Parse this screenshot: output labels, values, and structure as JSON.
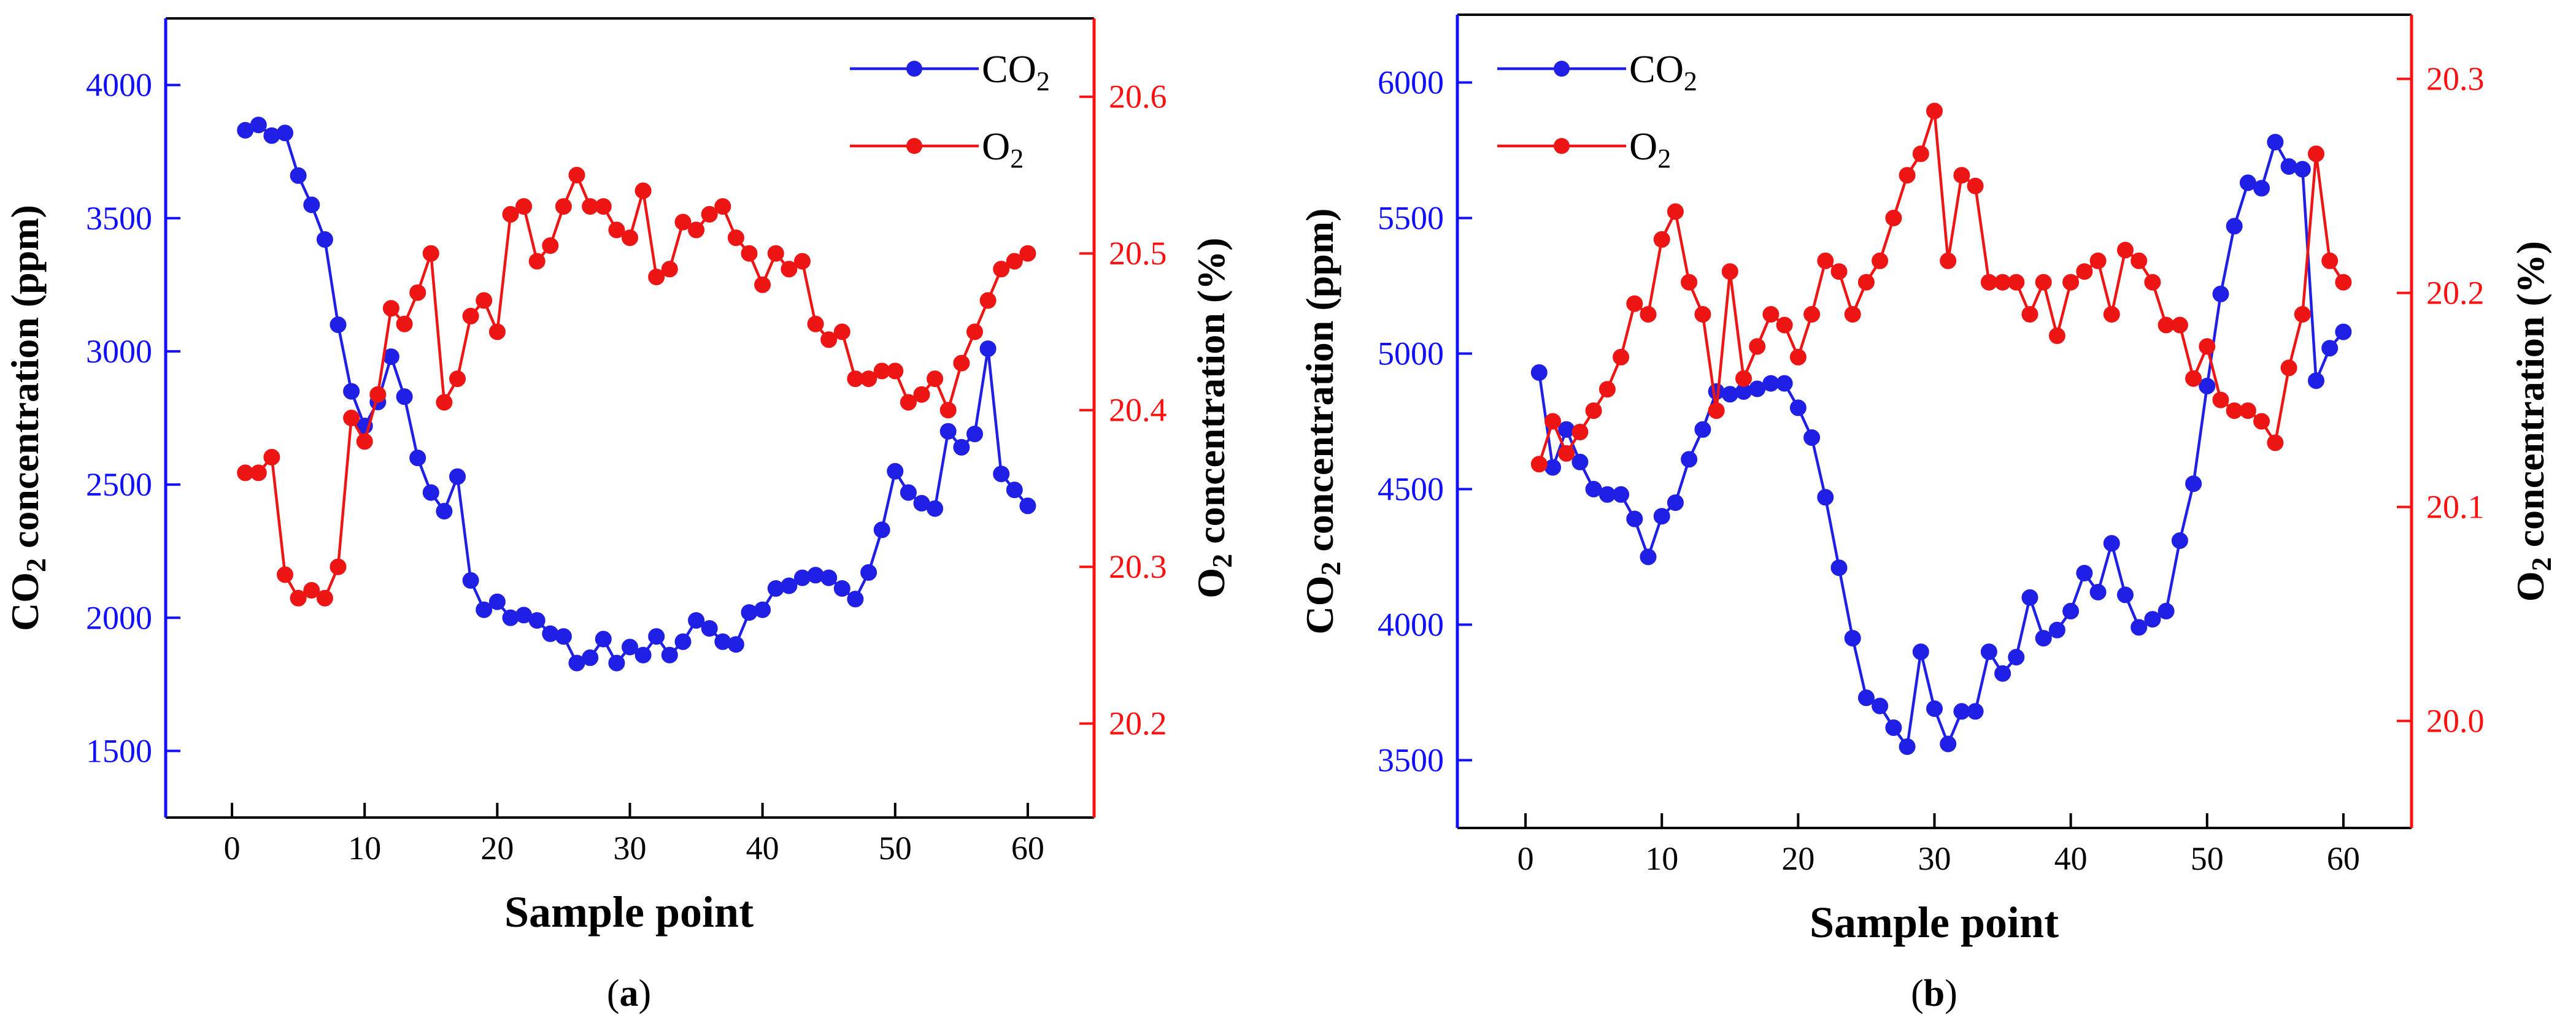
{
  "chart_data": [
    {
      "panel": "a",
      "panel_label": [
        "(",
        "a",
        ")"
      ],
      "type": "line",
      "xlabel": "Sample point",
      "ylabel_left": {
        "main": "CO",
        "sub": "2",
        "rest": " concentration (ppm)"
      },
      "ylabel_right": {
        "main": "O",
        "sub": "2",
        "rest": " concentration (%)"
      },
      "xlim": [
        -5,
        65
      ],
      "ylim_left": [
        1250,
        4250
      ],
      "ylim_right": [
        20.14,
        20.65
      ],
      "xticks": [
        0,
        10,
        20,
        30,
        40,
        50,
        60
      ],
      "yticks_left": [
        1500,
        2000,
        2500,
        3000,
        3500,
        4000
      ],
      "yticks_right": [
        20.2,
        20.3,
        20.4,
        20.5,
        20.6
      ],
      "legend_position": "top-right",
      "colors": {
        "left_axis": "#1010ff",
        "right_axis": "#ff1010",
        "frame": "#000000"
      },
      "series": [
        {
          "name": {
            "main": "CO",
            "sub": "2"
          },
          "axis": "left",
          "color": "#1f1fe6",
          "x": [
            1,
            2,
            3,
            4,
            5,
            6,
            7,
            8,
            9,
            10,
            11,
            12,
            13,
            14,
            15,
            16,
            17,
            18,
            19,
            20,
            21,
            22,
            23,
            24,
            25,
            26,
            27,
            28,
            29,
            30,
            31,
            32,
            33,
            34,
            35,
            36,
            37,
            38,
            39,
            40,
            41,
            42,
            43,
            44,
            45,
            46,
            47,
            48,
            49,
            50,
            51,
            52,
            53,
            54,
            55,
            56,
            57,
            58,
            59,
            60
          ],
          "values": [
            3830,
            3850,
            3810,
            3820,
            3660,
            3550,
            3420,
            3100,
            2850,
            2720,
            2810,
            2980,
            2830,
            2600,
            2470,
            2400,
            2530,
            2140,
            2030,
            2060,
            2000,
            2010,
            1990,
            1940,
            1930,
            1830,
            1850,
            1920,
            1830,
            1890,
            1860,
            1930,
            1860,
            1910,
            1990,
            1960,
            1910,
            1900,
            2020,
            2030,
            2110,
            2120,
            2150,
            2160,
            2150,
            2110,
            2070,
            2170,
            2330,
            2550,
            2470,
            2430,
            2410,
            2700,
            2640,
            2690,
            3010,
            2540,
            2480,
            2420
          ]
        },
        {
          "name": {
            "main": "O",
            "sub": "2"
          },
          "axis": "right",
          "color": "#ee1515",
          "x": [
            1,
            2,
            3,
            4,
            5,
            6,
            7,
            8,
            9,
            10,
            11,
            12,
            13,
            14,
            15,
            16,
            17,
            18,
            19,
            20,
            21,
            22,
            23,
            24,
            25,
            26,
            27,
            28,
            29,
            30,
            31,
            32,
            33,
            34,
            35,
            36,
            37,
            38,
            39,
            40,
            41,
            42,
            43,
            44,
            45,
            46,
            47,
            48,
            49,
            50,
            51,
            52,
            53,
            54,
            55,
            56,
            57,
            58,
            59,
            60
          ],
          "values": [
            20.36,
            20.36,
            20.37,
            20.295,
            20.28,
            20.285,
            20.28,
            20.3,
            20.395,
            20.38,
            20.41,
            20.465,
            20.455,
            20.475,
            20.5,
            20.405,
            20.42,
            20.46,
            20.47,
            20.45,
            20.525,
            20.53,
            20.495,
            20.505,
            20.53,
            20.55,
            20.53,
            20.53,
            20.515,
            20.51,
            20.54,
            20.485,
            20.49,
            20.52,
            20.515,
            20.525,
            20.53,
            20.51,
            20.5,
            20.48,
            20.5,
            20.49,
            20.495,
            20.455,
            20.445,
            20.45,
            20.42,
            20.42,
            20.425,
            20.425,
            20.405,
            20.41,
            20.42,
            20.4,
            20.43,
            20.45,
            20.47,
            20.49,
            20.495,
            20.5
          ]
        }
      ]
    },
    {
      "panel": "b",
      "panel_label": [
        "(",
        "b",
        ")"
      ],
      "type": "line",
      "xlabel": "Sample point",
      "ylabel_left": {
        "main": "CO",
        "sub": "2",
        "rest": " concentration (ppm)"
      },
      "ylabel_right": {
        "main": "O",
        "sub": "2",
        "rest": " concentration (%)"
      },
      "xlim": [
        -5,
        65
      ],
      "ylim_left": [
        3250,
        6250
      ],
      "ylim_right": [
        19.95,
        20.33
      ],
      "xticks": [
        0,
        10,
        20,
        30,
        40,
        50,
        60
      ],
      "yticks_left": [
        3500,
        4000,
        4500,
        5000,
        5500,
        6000
      ],
      "yticks_right": [
        20.0,
        20.1,
        20.2,
        20.3
      ],
      "legend_position": "top-left",
      "colors": {
        "left_axis": "#1010ff",
        "right_axis": "#ff1010",
        "frame": "#000000"
      },
      "series": [
        {
          "name": {
            "main": "CO",
            "sub": "2"
          },
          "axis": "left",
          "color": "#1f1fe6",
          "x": [
            1,
            2,
            3,
            4,
            5,
            6,
            7,
            8,
            9,
            10,
            11,
            12,
            13,
            14,
            15,
            16,
            17,
            18,
            19,
            20,
            21,
            22,
            23,
            24,
            25,
            26,
            27,
            28,
            29,
            30,
            31,
            32,
            33,
            34,
            35,
            36,
            37,
            38,
            39,
            40,
            41,
            42,
            43,
            44,
            45,
            46,
            47,
            48,
            49,
            50,
            51,
            52,
            53,
            54,
            55,
            56,
            57,
            58,
            59,
            60
          ],
          "values": [
            4930,
            4580,
            4720,
            4600,
            4500,
            4480,
            4480,
            4390,
            4250,
            4400,
            4450,
            4610,
            4720,
            4860,
            4850,
            4860,
            4870,
            4890,
            4890,
            4800,
            4690,
            4470,
            4210,
            3950,
            3730,
            3700,
            3620,
            3550,
            3900,
            3690,
            3560,
            3680,
            3680,
            3900,
            3820,
            3880,
            4100,
            3950,
            3980,
            4050,
            4190,
            4120,
            4300,
            4110,
            3990,
            4020,
            4050,
            4310,
            4520,
            4880,
            5220,
            5470,
            5630,
            5610,
            5780,
            5690,
            5680,
            4900,
            5020,
            5080
          ]
        },
        {
          "name": {
            "main": "O",
            "sub": "2"
          },
          "axis": "right",
          "color": "#ee1515",
          "x": [
            1,
            2,
            3,
            4,
            5,
            6,
            7,
            8,
            9,
            10,
            11,
            12,
            13,
            14,
            15,
            16,
            17,
            18,
            19,
            20,
            21,
            22,
            23,
            24,
            25,
            26,
            27,
            28,
            29,
            30,
            31,
            32,
            33,
            34,
            35,
            36,
            37,
            38,
            39,
            40,
            41,
            42,
            43,
            44,
            45,
            46,
            47,
            48,
            49,
            50,
            51,
            52,
            53,
            54,
            55,
            56,
            57,
            58,
            59,
            60
          ],
          "values": [
            20.12,
            20.14,
            20.125,
            20.135,
            20.145,
            20.155,
            20.17,
            20.195,
            20.19,
            20.225,
            20.238,
            20.205,
            20.19,
            20.145,
            20.21,
            20.16,
            20.175,
            20.19,
            20.185,
            20.17,
            20.19,
            20.215,
            20.21,
            20.19,
            20.205,
            20.215,
            20.235,
            20.255,
            20.265,
            20.285,
            20.215,
            20.255,
            20.25,
            20.205,
            20.205,
            20.205,
            20.19,
            20.205,
            20.18,
            20.205,
            20.21,
            20.215,
            20.19,
            20.22,
            20.215,
            20.205,
            20.185,
            20.185,
            20.16,
            20.175,
            20.15,
            20.145,
            20.145,
            20.14,
            20.13,
            20.165,
            20.19,
            20.265,
            20.215,
            20.205
          ]
        }
      ]
    }
  ]
}
